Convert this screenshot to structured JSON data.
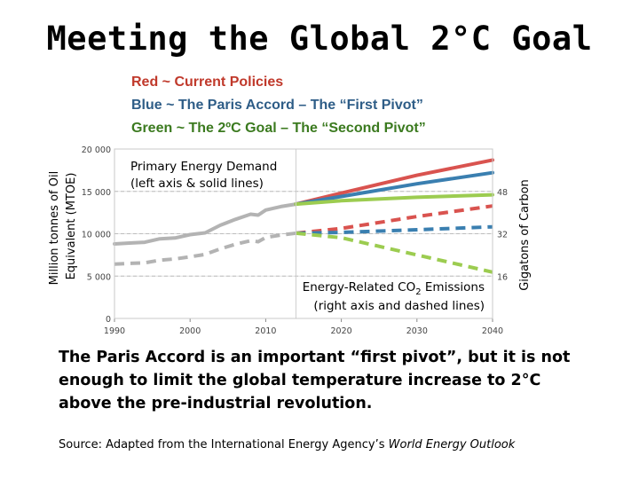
{
  "title": "Meeting the Global 2°C Goal",
  "legend": {
    "red": "Red ~ Current Policies",
    "blue": "Blue ~ The Paris Accord – The “First Pivot”",
    "green": "Green ~ The 2ºC Goal – The “Second Pivot”"
  },
  "caption": "The Paris Accord is an important “first pivot”, but it is not enough to limit the global temperature increase to 2°C above the pre-industrial revolution.",
  "source": {
    "prefix": "Source: Adapted from the International Energy Agency’s ",
    "work": "World Energy Outlook"
  },
  "colors": {
    "red": "#d9534f",
    "blue": "#3a7fb0",
    "green": "#9ccc50",
    "history": "#b3b3b3"
  },
  "chart_data": {
    "type": "line",
    "xlabel": "",
    "ylabel_left": "Million tonnes of Oil Equivalent (MTOE)",
    "ylabel_right": "Gigatons of Carbon",
    "xlim": [
      1990,
      2040
    ],
    "ylim_left": [
      0,
      20000
    ],
    "ylim_right": [
      0,
      64
    ],
    "x_ticks": [
      "1990",
      "2000",
      "2010",
      "2020",
      "2030",
      "2040"
    ],
    "y_ticks_left": [
      "0",
      "5 000",
      "10 000",
      "15 000",
      "20 000"
    ],
    "y_ticks_right": [
      "16",
      "32",
      "48"
    ],
    "annotation_demand": [
      "Primary Energy Demand",
      "(left axis & solid lines)"
    ],
    "annotation_emissions_pre": "Energy-Related CO",
    "annotation_emissions_sub": "2",
    "annotation_emissions_post": " Emissions",
    "annotation_emissions_line2": "(right axis and dashed lines)",
    "series": [
      {
        "name": "Primary energy demand (historical)",
        "axis": "left",
        "style": "solid",
        "color": "history",
        "x": [
          1990,
          1992,
          1994,
          1996,
          1998,
          2000,
          2002,
          2004,
          2006,
          2008,
          2009,
          2010,
          2012,
          2014
        ],
        "values": [
          8800,
          8900,
          9000,
          9400,
          9500,
          9900,
          10100,
          11000,
          11700,
          12300,
          12200,
          12800,
          13200,
          13500
        ]
      },
      {
        "name": "Energy-related CO2 emissions (historical)",
        "axis": "right",
        "style": "dashed",
        "color": "history",
        "x": [
          1990,
          1992,
          1994,
          1996,
          1998,
          2000,
          2002,
          2004,
          2006,
          2008,
          2009,
          2010,
          2012,
          2014
        ],
        "values": [
          20.5,
          20.8,
          21.0,
          22.0,
          22.5,
          23.3,
          24.2,
          26.3,
          28.0,
          29.4,
          29.0,
          30.6,
          31.5,
          32.2
        ]
      },
      {
        "name": "Current Policies demand",
        "axis": "left",
        "style": "solid",
        "color": "red",
        "x": [
          2014,
          2020,
          2030,
          2040
        ],
        "values": [
          13500,
          14800,
          16900,
          18700
        ]
      },
      {
        "name": "Paris Accord demand",
        "axis": "left",
        "style": "solid",
        "color": "blue",
        "x": [
          2014,
          2020,
          2030,
          2040
        ],
        "values": [
          13500,
          14400,
          15900,
          17200
        ]
      },
      {
        "name": "2°C Goal demand",
        "axis": "left",
        "style": "solid",
        "color": "green",
        "x": [
          2014,
          2020,
          2030,
          2040
        ],
        "values": [
          13500,
          13900,
          14300,
          14600
        ]
      },
      {
        "name": "Current Policies emissions",
        "axis": "right",
        "style": "dashed",
        "color": "red",
        "x": [
          2014,
          2020,
          2030,
          2040
        ],
        "values": [
          32.2,
          34.0,
          38.5,
          42.5
        ]
      },
      {
        "name": "Paris Accord emissions",
        "axis": "right",
        "style": "dashed",
        "color": "blue",
        "x": [
          2014,
          2020,
          2030,
          2040
        ],
        "values": [
          32.2,
          32.5,
          33.5,
          34.6
        ]
      },
      {
        "name": "2°C Goal emissions",
        "axis": "right",
        "style": "dashed",
        "color": "green",
        "x": [
          2014,
          2020,
          2030,
          2040
        ],
        "values": [
          32.2,
          30.5,
          24.0,
          17.5
        ]
      }
    ]
  }
}
